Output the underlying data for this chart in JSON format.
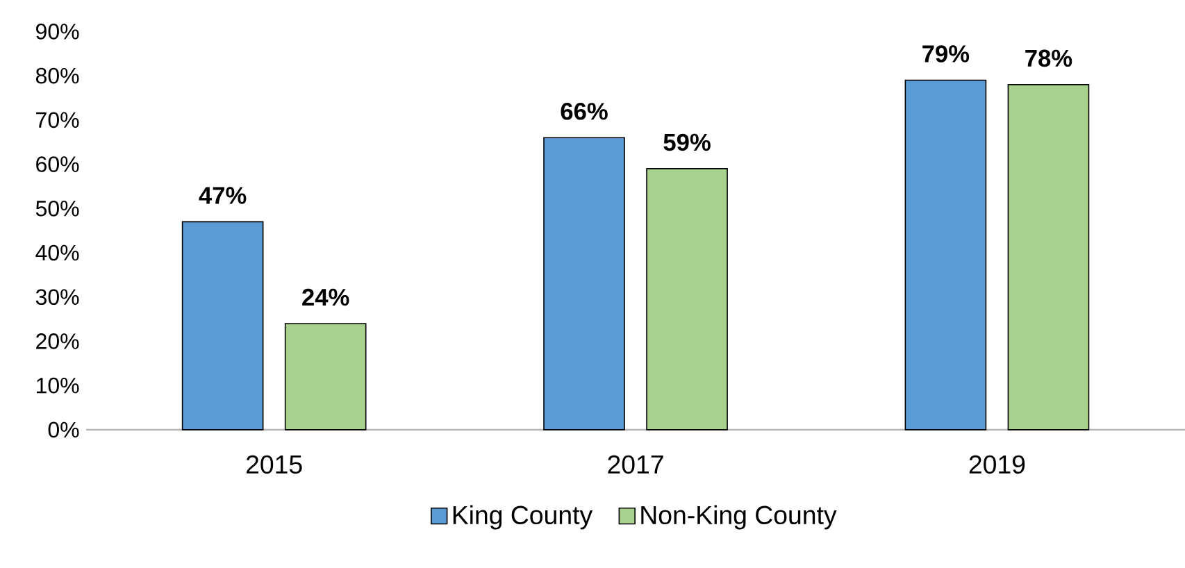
{
  "chart_data": {
    "type": "bar",
    "categories": [
      "2015",
      "2017",
      "2019"
    ],
    "series": [
      {
        "name": "King County",
        "color": "#5b9bd5",
        "values": [
          47,
          66,
          79
        ],
        "value_labels": [
          "47%",
          "66%",
          "79%"
        ]
      },
      {
        "name": "Non-King County",
        "color": "#a9d18e",
        "values": [
          24,
          59,
          78
        ],
        "value_labels": [
          "24%",
          "59%",
          "78%"
        ]
      }
    ],
    "ylim": [
      0,
      90
    ],
    "yticks": [
      {
        "value": 0,
        "label": "0%"
      },
      {
        "value": 10,
        "label": "10%"
      },
      {
        "value": 20,
        "label": "20%"
      },
      {
        "value": 30,
        "label": "30%"
      },
      {
        "value": 40,
        "label": "40%"
      },
      {
        "value": 50,
        "label": "50%"
      },
      {
        "value": 60,
        "label": "60%"
      },
      {
        "value": 70,
        "label": "70%"
      },
      {
        "value": 80,
        "label": "80%"
      },
      {
        "value": 90,
        "label": "90%"
      }
    ],
    "grid": false,
    "legend": "bottom"
  }
}
